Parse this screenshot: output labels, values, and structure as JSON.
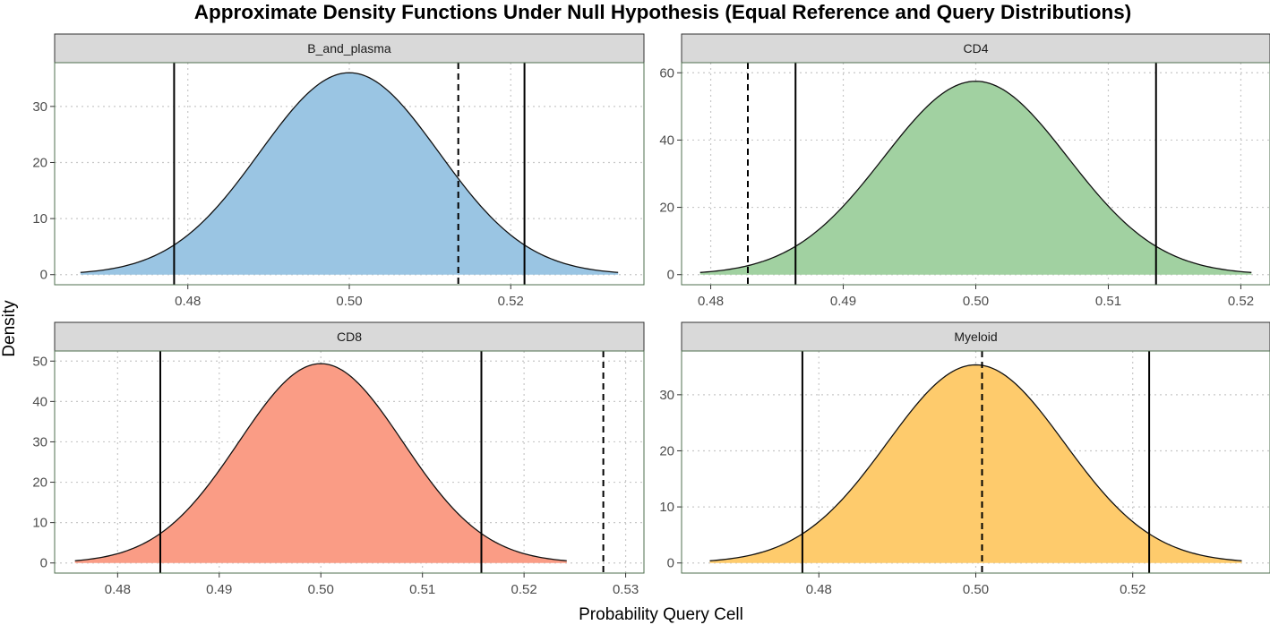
{
  "chart_data": {
    "type": "area",
    "title": "Approximate Density Functions Under Null Hypothesis (Equal Reference and Query Distributions)",
    "xlabel": "Probability Query Cell",
    "ylabel": "Density",
    "grid": true,
    "gridStyle": "dotted",
    "legend": "none",
    "panels": [
      {
        "name": "B_and_plasma",
        "fill": "#9ac5e3",
        "mean": 0.5,
        "sd": 0.01108,
        "xrange": [
          0.4667,
          0.5333
        ],
        "xlim": [
          0.4635,
          0.5365
        ],
        "ylim": [
          -1.8,
          37.8
        ],
        "xticks": [
          0.48,
          0.5,
          0.52
        ],
        "xtick_labels": [
          "0.48",
          "0.50",
          "0.52"
        ],
        "yticks": [
          0,
          10,
          20,
          30
        ],
        "ytick_labels": [
          "0",
          "10",
          "20",
          "30"
        ],
        "solid_lines": [
          0.4783,
          0.5217
        ],
        "dashed_line": 0.5135
      },
      {
        "name": "CD4",
        "fill": "#a1d1a1",
        "mean": 0.5,
        "sd": 0.00694,
        "xrange": [
          0.4792,
          0.5208
        ],
        "xlim": [
          0.4778,
          0.5222
        ],
        "ylim": [
          -3.0,
          63.0
        ],
        "xticks": [
          0.48,
          0.49,
          0.5,
          0.51,
          0.52
        ],
        "xtick_labels": [
          "0.48",
          "0.49",
          "0.50",
          "0.51",
          "0.52"
        ],
        "yticks": [
          0,
          20,
          40,
          60
        ],
        "ytick_labels": [
          "0",
          "20",
          "40",
          "60"
        ],
        "solid_lines": [
          0.4864,
          0.5136
        ],
        "dashed_line": 0.4828
      },
      {
        "name": "CD8",
        "fill": "#fa9c85",
        "mean": 0.5,
        "sd": 0.00808,
        "xrange": [
          0.4758,
          0.5242
        ],
        "xlim": [
          0.4738,
          0.5318
        ],
        "ylim": [
          -2.5,
          52.5
        ],
        "xticks": [
          0.48,
          0.49,
          0.5,
          0.51,
          0.52,
          0.53
        ],
        "xtick_labels": [
          "0.48",
          "0.49",
          "0.50",
          "0.51",
          "0.52",
          "0.53"
        ],
        "yticks": [
          0,
          10,
          20,
          30,
          40,
          50
        ],
        "ytick_labels": [
          "0",
          "10",
          "20",
          "30",
          "40",
          "50"
        ],
        "solid_lines": [
          0.4842,
          0.5158
        ],
        "dashed_line": 0.5278
      },
      {
        "name": "Myeloid",
        "fill": "#fecb6c",
        "mean": 0.5,
        "sd": 0.01129,
        "xrange": [
          0.4661,
          0.5339
        ],
        "xlim": [
          0.4625,
          0.5375
        ],
        "ylim": [
          -1.8,
          37.8
        ],
        "xticks": [
          0.48,
          0.5,
          0.52
        ],
        "xtick_labels": [
          "0.48",
          "0.50",
          "0.52"
        ],
        "yticks": [
          0,
          10,
          20,
          30
        ],
        "ytick_labels": [
          "0",
          "10",
          "20",
          "30"
        ],
        "solid_lines": [
          0.4779,
          0.5221
        ],
        "dashed_line": 0.5008
      }
    ]
  }
}
